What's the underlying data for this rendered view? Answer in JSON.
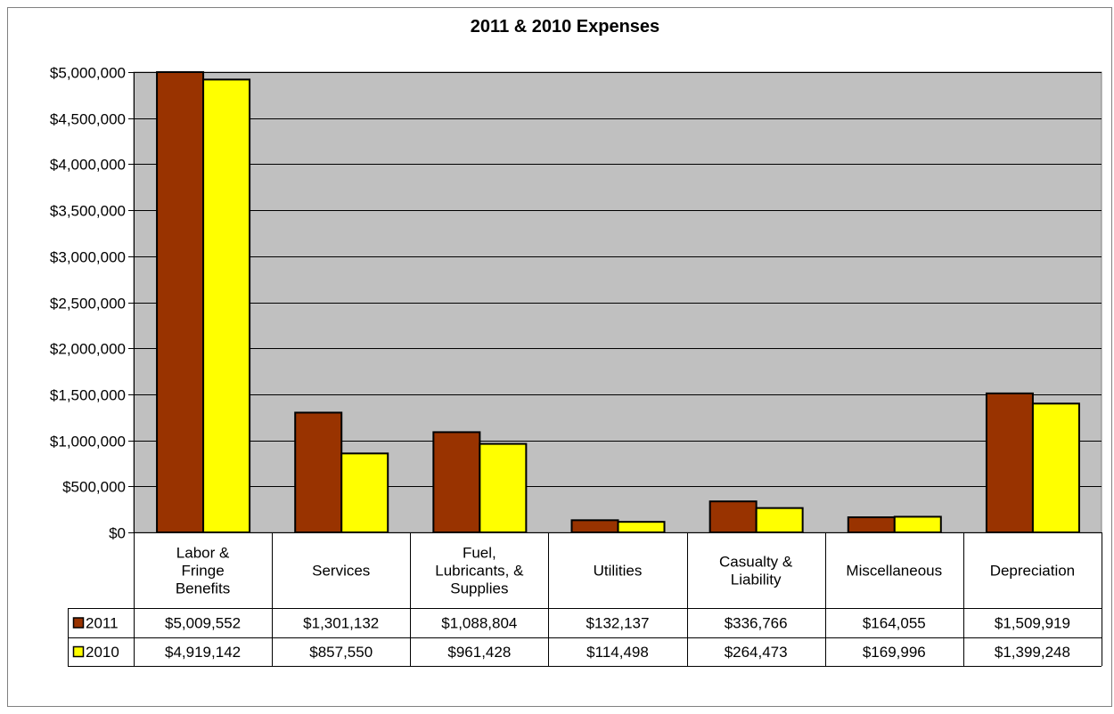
{
  "chart_data": {
    "type": "bar",
    "title": "2011 & 2010 Expenses",
    "xlabel": "",
    "ylabel": "",
    "ylim": [
      0,
      5000000
    ],
    "yticks": [
      0,
      500000,
      1000000,
      1500000,
      2000000,
      2500000,
      3000000,
      3500000,
      4000000,
      4500000,
      5000000
    ],
    "ytick_labels": [
      "$0",
      "$500,000",
      "$1,000,000",
      "$1,500,000",
      "$2,000,000",
      "$2,500,000",
      "$3,000,000",
      "$3,500,000",
      "$4,000,000",
      "$4,500,000",
      "$5,000,000"
    ],
    "grid": true,
    "legend": "data-table",
    "categories": [
      [
        "Labor &",
        "Fringe",
        "Benefits"
      ],
      [
        "Services"
      ],
      [
        "Fuel,",
        "Lubricants, &",
        "Supplies"
      ],
      [
        "Utilities"
      ],
      [
        "Casualty &",
        "Liability"
      ],
      [
        "Miscellaneous"
      ],
      [
        "Depreciation"
      ]
    ],
    "series": [
      {
        "name": "2011",
        "color": "#993300",
        "values": [
          5009552,
          1301132,
          1088804,
          132137,
          336766,
          164055,
          1509919
        ],
        "value_labels": [
          "$5,009,552",
          "$1,301,132",
          "$1,088,804",
          "$132,137",
          "$336,766",
          "$164,055",
          "$1,509,919"
        ]
      },
      {
        "name": "2010",
        "color": "#ffff00",
        "values": [
          4919142,
          857550,
          961428,
          114498,
          264473,
          169996,
          1399248
        ],
        "value_labels": [
          "$4,919,142",
          "$857,550",
          "$961,428",
          "$114,498",
          "$264,473",
          "$169,996",
          "$1,399,248"
        ]
      }
    ],
    "plot_background": "#c0c0c0"
  }
}
